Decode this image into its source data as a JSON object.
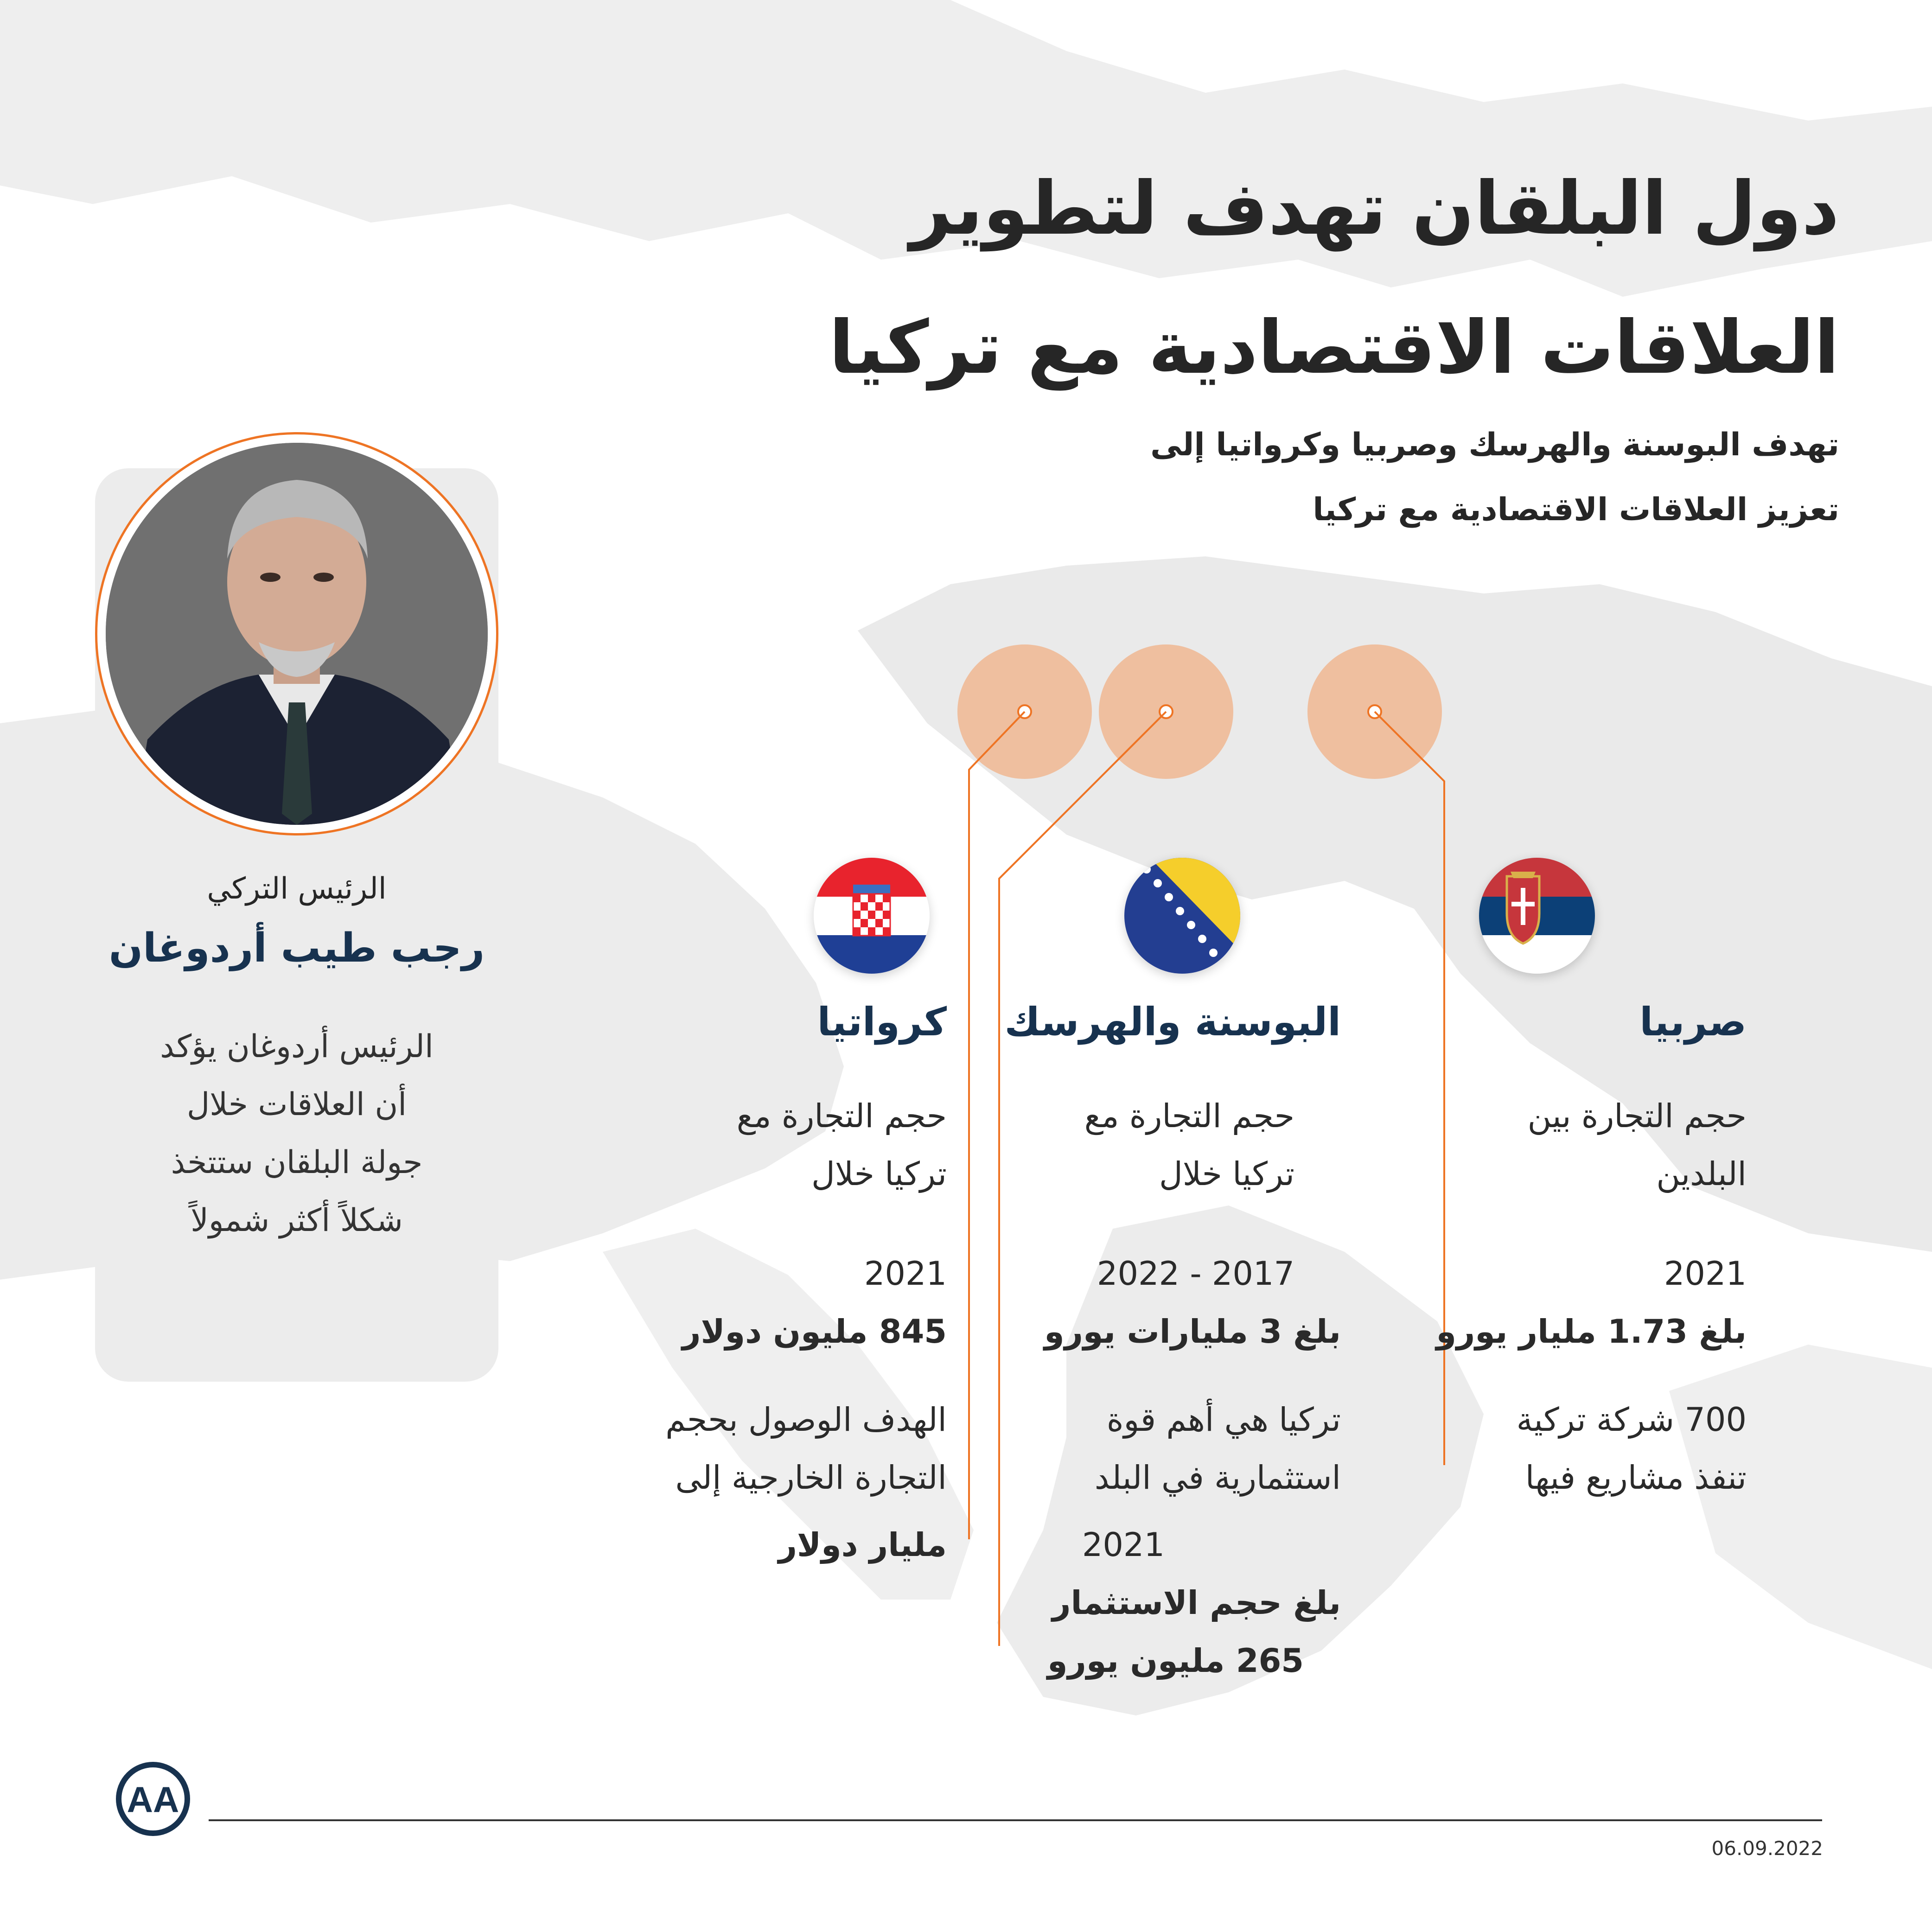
{
  "title_line1": "دول البلقان تهدف لتطوير",
  "title_line2": "العلاقات الاقتصادية مع تركيا",
  "subtitle_line1": "تهدف البوسنة والهرسك وصربيا وكرواتيا إلى",
  "subtitle_line2": "تعزيز العلاقات الاقتصادية مع تركيا",
  "person": {
    "role": "الرئيس التركي",
    "name": "رجب طيب أردوغان",
    "quote_line1": "الرئيس أردوغان يؤكد",
    "quote_line2": "أن العلاقات خلال",
    "quote_line3": "جولة البلقان ستتخذ",
    "quote_line4": "شكلاً أكثر شمولاً"
  },
  "countries": {
    "serbia": {
      "name": "صربيا",
      "trade_line1": "حجم التجارة بين",
      "trade_line2": "البلدين",
      "year": "2021",
      "value": "بلغ 1.73 مليار يورو",
      "note_line1": "700 شركة تركية",
      "note_line2": "تنفذ مشاريع فيها"
    },
    "bosnia": {
      "name": "البوسنة والهرسك",
      "trade_line1": "حجم التجارة مع",
      "trade_line2": "تركيا خلال",
      "period": "2017 - 2022",
      "value": "بلغ 3 مليارات يورو",
      "note_line1": "تركيا هي أهم قوة",
      "note_line2": "استثمارية في البلد",
      "year2": "2021",
      "invest_line1": "بلغ حجم الاستثمار",
      "invest_line2": "265 مليون يورو"
    },
    "croatia": {
      "name": "كرواتيا",
      "trade_line1": "حجم التجارة مع",
      "trade_line2": "تركيا خلال",
      "year": "2021",
      "value": "845 مليون دولار",
      "goal_line1": "الهدف الوصول بحجم",
      "goal_line2": "التجارة الخارجية إلى",
      "goal_value": "مليار دولار"
    }
  },
  "footer": {
    "logo_text": "AA",
    "date": "06.09.2022"
  },
  "colors": {
    "accent": "#ee7424",
    "marker_fill": "#f0b792",
    "name_blue": "#17324f",
    "map_gray": "#e9e9e9"
  },
  "icons": [
    "serbia-flag-icon",
    "bosnia-flag-icon",
    "croatia-flag-icon",
    "aa-logo-icon"
  ]
}
